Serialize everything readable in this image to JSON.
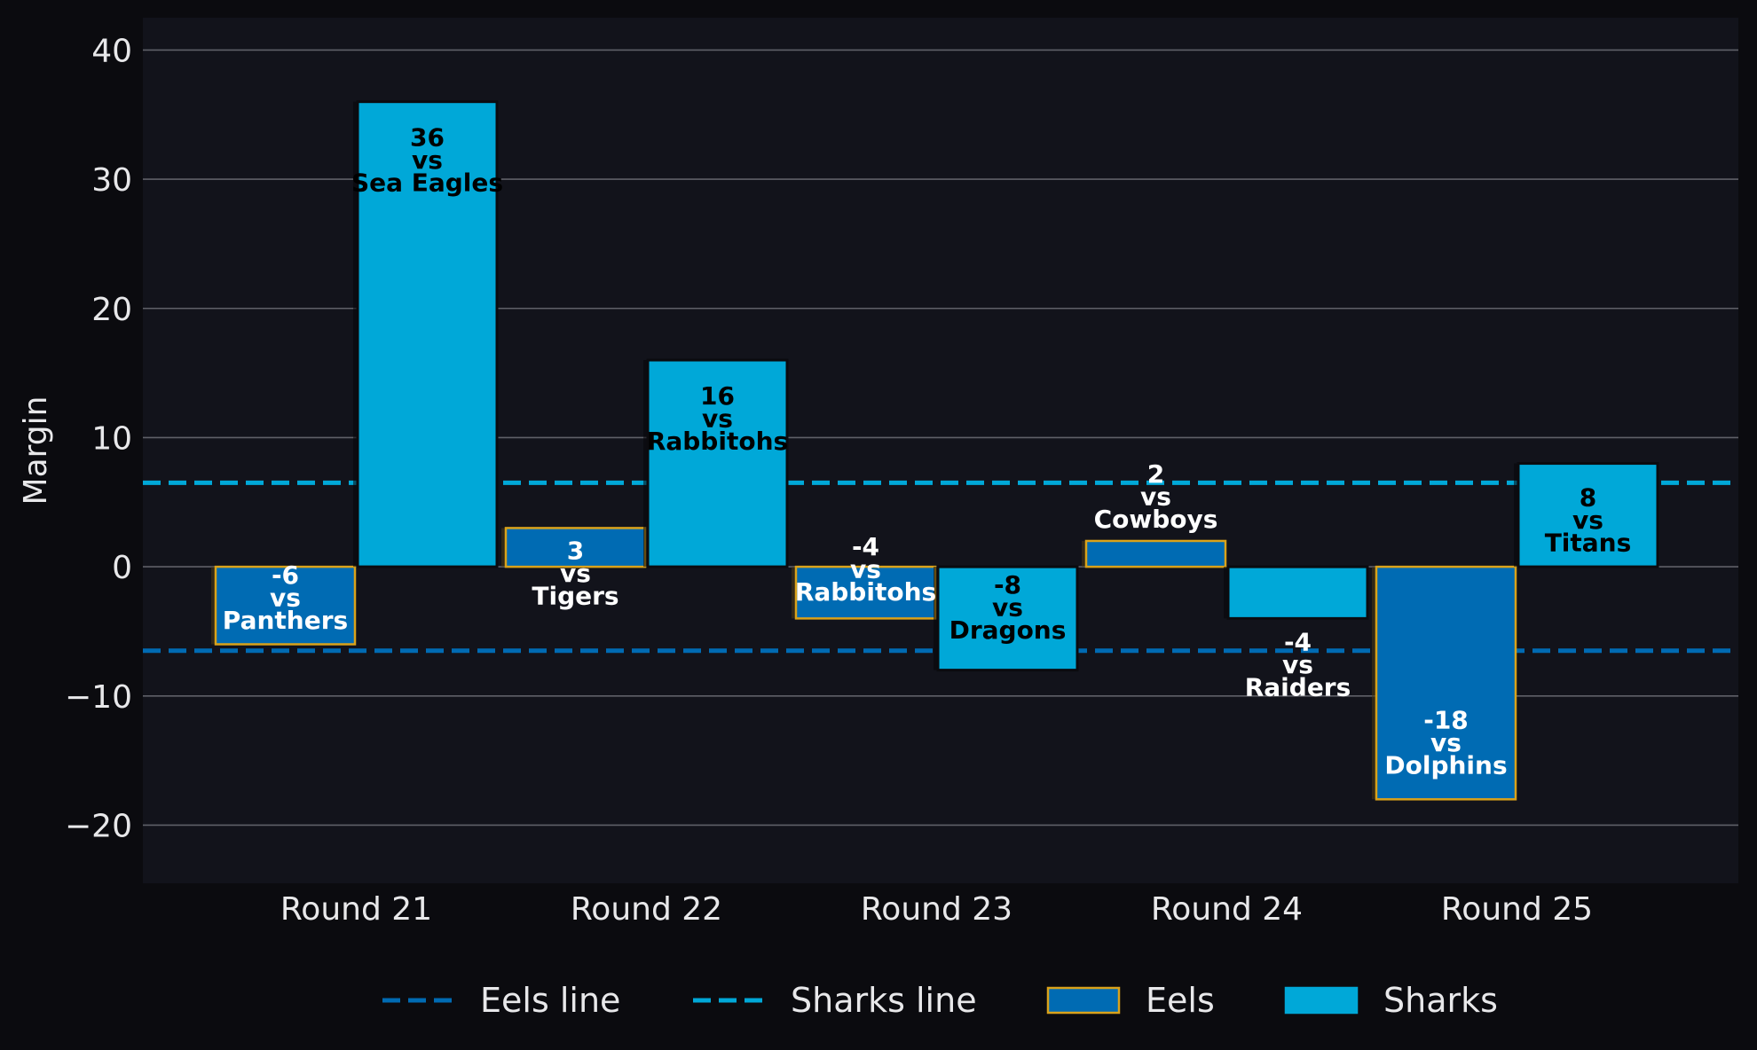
{
  "chart_data": {
    "type": "bar",
    "title": "",
    "xlabel": "",
    "ylabel": "Margin",
    "ylim": [
      -24.5,
      42.5
    ],
    "yticks": [
      -20,
      -10,
      0,
      10,
      20,
      30,
      40
    ],
    "ytick_labels": [
      "−20",
      "−10",
      "0",
      "10",
      "20",
      "30",
      "40"
    ],
    "grid": "horizontal",
    "legend_position": "bottom",
    "categories": [
      "Round 21",
      "Round 22",
      "Round 23",
      "Round 24",
      "Round 25"
    ],
    "series": [
      {
        "name": "Eels",
        "color": "#006bb3",
        "edge_color": "#d9a21b",
        "values": [
          -6,
          3,
          -4,
          2,
          -18
        ],
        "opponents": [
          "Panthers",
          "Tigers",
          "Rabbitohs",
          "Cowboys",
          "Dolphins"
        ]
      },
      {
        "name": "Sharks",
        "color": "#00a8d8",
        "edge_color": "#0b0b0f",
        "values": [
          36,
          16,
          -8,
          -4,
          8
        ],
        "opponents": [
          "Sea Eagles",
          "Rabbitohs",
          "Dragons",
          "Raiders",
          "Titans"
        ]
      }
    ],
    "reference_lines": [
      {
        "name": "Eels line",
        "value": -6.5,
        "color": "#006bb3",
        "style": "dashed"
      },
      {
        "name": "Sharks line",
        "value": 6.5,
        "color": "#00a8d8",
        "style": "dashed"
      }
    ],
    "vs_text": "vs"
  }
}
